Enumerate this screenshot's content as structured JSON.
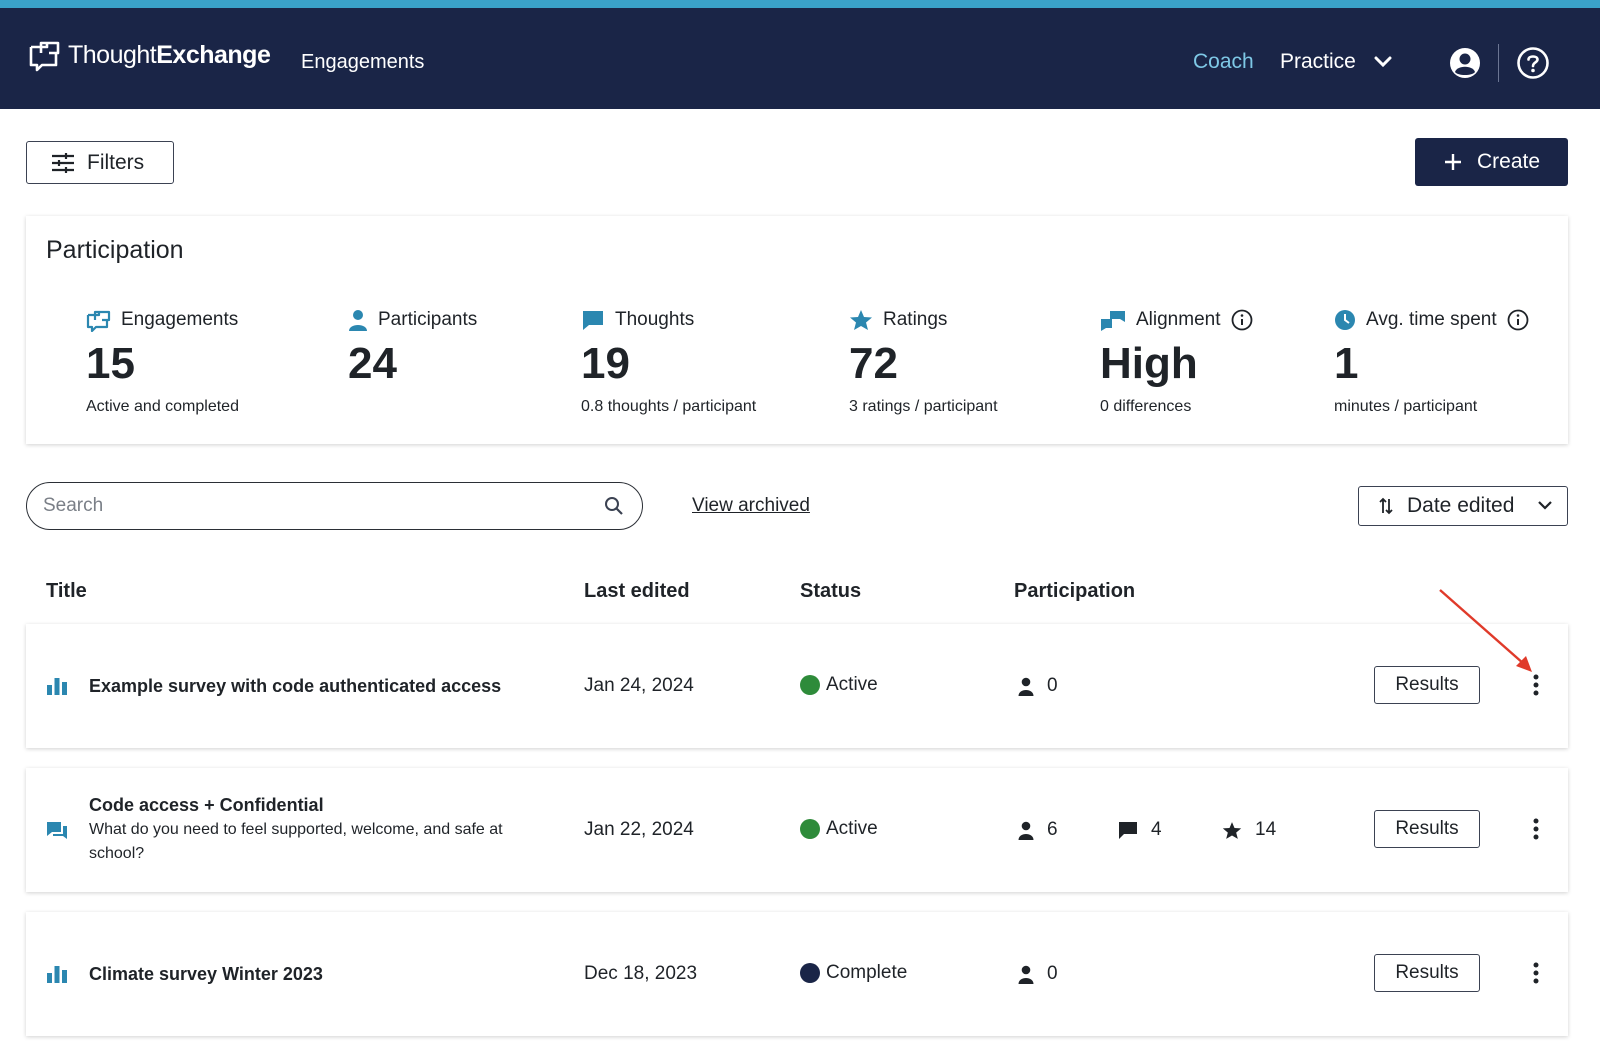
{
  "app": {
    "brand_light": "Thought",
    "brand_bold": "Exchange",
    "nav_engagements": "Engagements",
    "nav_coach": "Coach",
    "nav_practice": "Practice",
    "icons": [
      "logo-icon",
      "chevron-down-icon",
      "user-icon",
      "help-icon"
    ]
  },
  "toolbar": {
    "filters_label": "Filters",
    "create_label": "Create"
  },
  "participation": {
    "title": "Participation",
    "stats": [
      {
        "label": "Engagements",
        "value": "15",
        "sub": "Active and completed"
      },
      {
        "label": "Participants",
        "value": "24",
        "sub": ""
      },
      {
        "label": "Thoughts",
        "value": "19",
        "sub": "0.8 thoughts / participant"
      },
      {
        "label": "Ratings",
        "value": "72",
        "sub": "3 ratings / participant"
      },
      {
        "label": "Alignment",
        "value": "High",
        "sub": "0 differences"
      },
      {
        "label": "Avg. time spent",
        "value": "1",
        "sub": "minutes / participant"
      }
    ]
  },
  "list_controls": {
    "search_placeholder": "Search",
    "view_archived": "View archived",
    "sort_label": "Date edited"
  },
  "table": {
    "headers": {
      "title": "Title",
      "last_edited": "Last edited",
      "status": "Status",
      "participation": "Participation"
    },
    "results_label": "Results",
    "rows": [
      {
        "type_icon": "bar-chart-icon",
        "title": "Example survey with code authenticated access",
        "description": "",
        "last_edited": "Jan 24, 2024",
        "status": "Active",
        "status_color": "#2e8b3a",
        "participants": "0"
      },
      {
        "type_icon": "chat-bubbles-icon",
        "title": "Code access + Confidential",
        "description": "What do you need to feel supported, welcome, and safe at school?",
        "last_edited": "Jan 22, 2024",
        "status": "Active",
        "status_color": "#2e8b3a",
        "participants": "6",
        "thoughts": "4",
        "ratings": "14"
      },
      {
        "type_icon": "bar-chart-icon",
        "title": "Climate survey Winter 2023",
        "description": "",
        "last_edited": "Dec 18, 2023",
        "status": "Complete",
        "status_color": "#1a2547",
        "participants": "0"
      }
    ]
  },
  "colors": {
    "navbar": "#1a2547",
    "accent_strip": "#3aa2c9",
    "coach_link": "#7ec8e6",
    "icon_teal": "#2b87b0",
    "annotation_arrow": "#e03a2a"
  }
}
